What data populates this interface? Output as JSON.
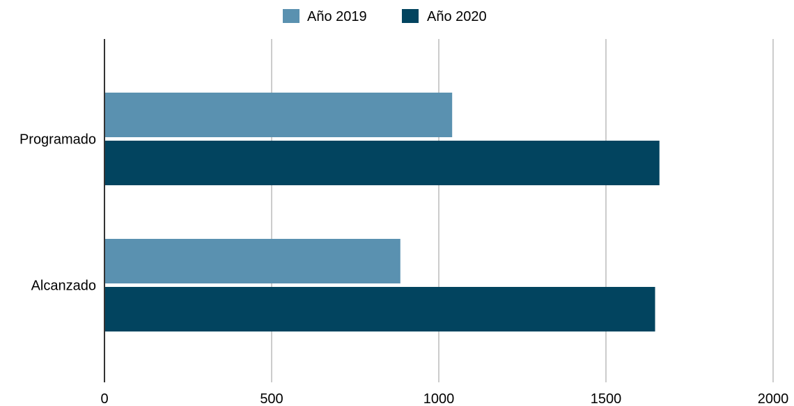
{
  "chart_data": {
    "type": "bar",
    "orientation": "horizontal",
    "categories": [
      "Programado",
      "Alcanzado"
    ],
    "series": [
      {
        "name": "Año 2019",
        "values": [
          1040,
          885
        ],
        "color": "#5A91B0"
      },
      {
        "name": "Año 2020",
        "values": [
          1660,
          1647
        ],
        "color": "#02445F"
      }
    ],
    "xlim": [
      0,
      2000
    ],
    "xticks": [
      0,
      500,
      1000,
      1500,
      2000
    ],
    "grid": true,
    "gridline_color": "#cccccc",
    "axis_color": "#333333",
    "legend_position": "top-center"
  }
}
